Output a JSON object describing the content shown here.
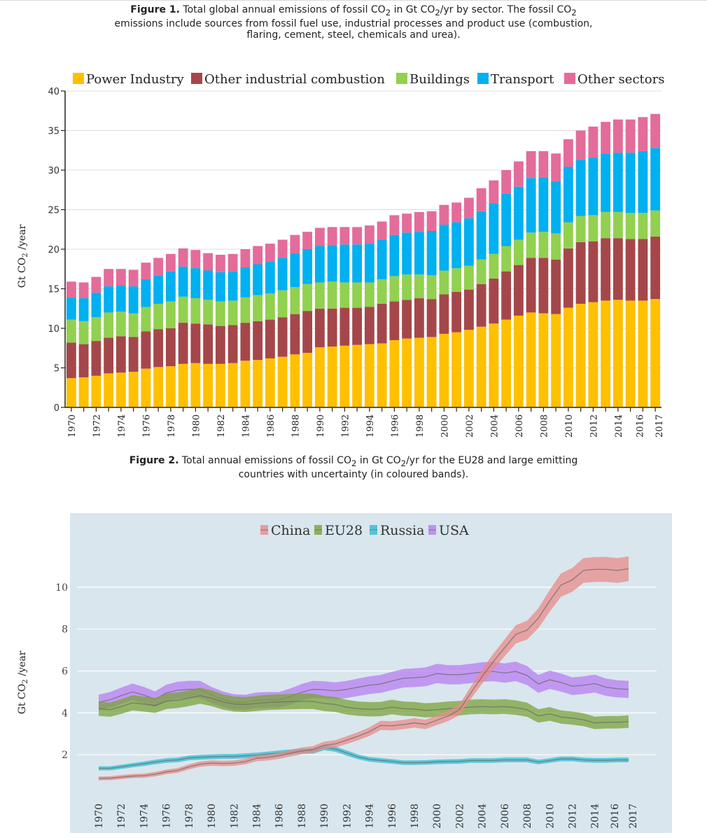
{
  "figure1": {
    "caption_label": "Figure 1.",
    "caption_text_1": " Total global annual emissions of fossil CO",
    "caption_sub_1": "2",
    "caption_text_2": " in Gt CO",
    "caption_sub_2": "2",
    "caption_text_3": "/yr by sector. The fossil CO",
    "caption_sub_3": "2",
    "caption_line_2": "emissions include sources from fossil fuel use, industrial processes and product use (combustion,",
    "caption_line_3": "flaring, cement, steel, chemicals and urea)."
  },
  "figure2": {
    "caption_label": "Figure 2.",
    "caption_text_1": " Total annual emissions of fossil CO",
    "caption_sub_1": "2",
    "caption_text_2": " in Gt CO",
    "caption_sub_2": "2",
    "caption_text_3": "/yr for the EU28 and large emitting",
    "caption_line_2": "countries with uncertainty (in coloured bands)."
  },
  "colors": {
    "power": "#ffc000",
    "other_industrial": "#a5474a",
    "buildings": "#92d050",
    "transport": "#00b0f0",
    "other_sectors": "#e36c9a",
    "china": "#e88b88",
    "eu28": "#79a33a",
    "russia": "#31bcd2",
    "usa": "#b77ef0",
    "panel_bg": "#d9e6ed"
  },
  "chart_data": [
    {
      "type": "bar",
      "stacked": true,
      "ylabel": "Gt CO2 /year",
      "ylim": [
        0,
        40
      ],
      "yticks": [
        0,
        5,
        10,
        15,
        20,
        25,
        30,
        35,
        40
      ],
      "grid": true,
      "legend_position": "top",
      "categories": [
        1970,
        1971,
        1972,
        1973,
        1974,
        1975,
        1976,
        1977,
        1978,
        1979,
        1980,
        1981,
        1982,
        1983,
        1984,
        1985,
        1986,
        1987,
        1988,
        1989,
        1990,
        1991,
        1992,
        1993,
        1994,
        1995,
        1996,
        1997,
        1998,
        1999,
        2000,
        2001,
        2002,
        2003,
        2004,
        2005,
        2006,
        2007,
        2008,
        2009,
        2010,
        2011,
        2012,
        2013,
        2014,
        2015,
        2016,
        2017
      ],
      "tick_labels": [
        "1970",
        "1972",
        "1974",
        "1976",
        "1978",
        "1980",
        "1982",
        "1984",
        "1986",
        "1988",
        "1990",
        "1992",
        "1994",
        "1996",
        "1998",
        "2000",
        "2002",
        "2004",
        "2006",
        "2008",
        "2010",
        "2012",
        "2014",
        "2016",
        "2017"
      ],
      "series": [
        {
          "name": "Power Industry",
          "color_key": "power",
          "values": [
            3.7,
            3.8,
            4.0,
            4.3,
            4.4,
            4.5,
            4.9,
            5.1,
            5.2,
            5.5,
            5.6,
            5.5,
            5.5,
            5.6,
            5.9,
            6.0,
            6.2,
            6.4,
            6.7,
            6.9,
            7.6,
            7.7,
            7.8,
            7.9,
            8.0,
            8.1,
            8.5,
            8.7,
            8.8,
            8.9,
            9.3,
            9.5,
            9.8,
            10.2,
            10.6,
            11.1,
            11.6,
            12.0,
            11.9,
            11.8,
            12.6,
            13.1,
            13.3,
            13.5,
            13.6,
            13.5,
            13.5,
            13.7
          ]
        },
        {
          "name": "Other industrial combustion",
          "color_key": "other_industrial",
          "values": [
            4.5,
            4.2,
            4.4,
            4.5,
            4.6,
            4.4,
            4.7,
            4.8,
            4.8,
            5.2,
            5.0,
            5.0,
            4.8,
            4.8,
            4.8,
            4.9,
            4.9,
            5.0,
            5.1,
            5.3,
            4.9,
            4.8,
            4.8,
            4.7,
            4.7,
            5.0,
            4.9,
            4.9,
            5.0,
            4.8,
            5.0,
            5.1,
            5.1,
            5.4,
            5.7,
            6.1,
            6.4,
            6.9,
            7.0,
            6.9,
            7.5,
            7.8,
            7.7,
            7.9,
            7.8,
            7.8,
            7.8,
            7.9
          ]
        },
        {
          "name": "Buildings",
          "color_key": "buildings",
          "values": [
            2.9,
            2.9,
            3.0,
            3.2,
            3.1,
            3.0,
            3.1,
            3.2,
            3.4,
            3.3,
            3.2,
            3.1,
            3.1,
            3.1,
            3.2,
            3.3,
            3.3,
            3.4,
            3.4,
            3.4,
            3.3,
            3.4,
            3.2,
            3.2,
            3.1,
            3.1,
            3.2,
            3.2,
            3.0,
            3.0,
            3.0,
            3.0,
            3.0,
            3.1,
            3.1,
            3.2,
            3.2,
            3.2,
            3.3,
            3.3,
            3.3,
            3.3,
            3.3,
            3.3,
            3.3,
            3.3,
            3.3,
            3.3
          ]
        },
        {
          "name": "Transport",
          "color_key": "transport",
          "values": [
            2.8,
            2.9,
            3.1,
            3.3,
            3.3,
            3.4,
            3.5,
            3.6,
            3.8,
            3.8,
            3.8,
            3.7,
            3.7,
            3.7,
            3.8,
            3.9,
            4.0,
            4.1,
            4.3,
            4.4,
            4.6,
            4.6,
            4.8,
            4.8,
            4.9,
            5.0,
            5.2,
            5.3,
            5.4,
            5.6,
            5.8,
            5.8,
            6.0,
            6.1,
            6.4,
            6.6,
            6.7,
            6.9,
            6.9,
            6.6,
            7.0,
            7.1,
            7.3,
            7.4,
            7.5,
            7.6,
            7.8,
            7.9
          ]
        },
        {
          "name": "Other sectors",
          "color_key": "other_sectors",
          "values": [
            2.0,
            2.0,
            2.0,
            2.2,
            2.1,
            2.1,
            2.1,
            2.2,
            2.2,
            2.3,
            2.3,
            2.2,
            2.2,
            2.2,
            2.3,
            2.3,
            2.3,
            2.3,
            2.3,
            2.2,
            2.3,
            2.3,
            2.2,
            2.2,
            2.3,
            2.3,
            2.5,
            2.4,
            2.5,
            2.5,
            2.5,
            2.5,
            2.6,
            2.9,
            2.9,
            3.0,
            3.2,
            3.4,
            3.3,
            3.5,
            3.5,
            3.7,
            3.9,
            4.0,
            4.2,
            4.2,
            4.3,
            4.3
          ]
        }
      ]
    },
    {
      "type": "line",
      "ylabel": "Gt CO2 /year",
      "ylim": [
        0,
        11.7
      ],
      "yticks": [
        2,
        4,
        6,
        8,
        10
      ],
      "grid": true,
      "legend_position": "top",
      "x": [
        1970,
        1971,
        1972,
        1973,
        1974,
        1975,
        1976,
        1977,
        1978,
        1979,
        1980,
        1981,
        1982,
        1983,
        1984,
        1985,
        1986,
        1987,
        1988,
        1989,
        1990,
        1991,
        1992,
        1993,
        1994,
        1995,
        1996,
        1997,
        1998,
        1999,
        2000,
        2001,
        2002,
        2003,
        2004,
        2005,
        2006,
        2007,
        2008,
        2009,
        2010,
        2011,
        2012,
        2013,
        2014,
        2015,
        2016,
        2017
      ],
      "tick_labels": [
        "1970",
        "1972",
        "1974",
        "1976",
        "1978",
        "1980",
        "1982",
        "1984",
        "1986",
        "1988",
        "1990",
        "1992",
        "1994",
        "1996",
        "1998",
        "2000",
        "2002",
        "2004",
        "2006",
        "2008",
        "2010",
        "2012",
        "2014",
        "2016",
        "2017"
      ],
      "series": [
        {
          "name": "China",
          "color_key": "china",
          "band": 0.1,
          "values": [
            0.87,
            0.88,
            0.93,
            0.98,
            1.0,
            1.07,
            1.18,
            1.25,
            1.42,
            1.55,
            1.6,
            1.58,
            1.6,
            1.67,
            1.83,
            1.87,
            1.95,
            2.07,
            2.18,
            2.25,
            2.45,
            2.52,
            2.7,
            2.88,
            3.1,
            3.4,
            3.38,
            3.44,
            3.52,
            3.45,
            3.65,
            3.85,
            4.15,
            4.95,
            5.73,
            6.45,
            7.1,
            7.75,
            7.95,
            8.52,
            9.35,
            10.1,
            10.35,
            10.8,
            10.85,
            10.85,
            10.8,
            10.88
          ]
        },
        {
          "name": "EU28",
          "color_key": "eu28",
          "band": 0.14,
          "values": [
            4.2,
            4.15,
            4.3,
            4.48,
            4.42,
            4.35,
            4.55,
            4.6,
            4.7,
            4.82,
            4.7,
            4.52,
            4.42,
            4.4,
            4.45,
            4.5,
            4.52,
            4.54,
            4.55,
            4.55,
            4.45,
            4.4,
            4.27,
            4.2,
            4.17,
            4.18,
            4.28,
            4.2,
            4.18,
            4.12,
            4.15,
            4.2,
            4.22,
            4.28,
            4.3,
            4.28,
            4.3,
            4.25,
            4.15,
            3.85,
            3.95,
            3.8,
            3.75,
            3.67,
            3.52,
            3.55,
            3.55,
            3.58
          ]
        },
        {
          "name": "Russia",
          "color_key": "russia",
          "band": 0.07,
          "values": [
            1.35,
            1.35,
            1.42,
            1.5,
            1.57,
            1.65,
            1.72,
            1.75,
            1.85,
            1.88,
            1.9,
            1.92,
            1.92,
            1.95,
            1.98,
            2.03,
            2.08,
            2.13,
            2.18,
            2.18,
            2.35,
            2.27,
            2.08,
            1.9,
            1.78,
            1.73,
            1.68,
            1.62,
            1.62,
            1.63,
            1.66,
            1.67,
            1.68,
            1.72,
            1.72,
            1.72,
            1.75,
            1.75,
            1.75,
            1.65,
            1.72,
            1.8,
            1.8,
            1.75,
            1.73,
            1.73,
            1.75,
            1.75
          ]
        },
        {
          "name": "USA",
          "color_key": "usa",
          "band": 0.14,
          "values": [
            4.5,
            4.62,
            4.82,
            5.0,
            4.85,
            4.65,
            4.95,
            5.08,
            5.12,
            5.12,
            4.85,
            4.65,
            4.52,
            4.5,
            4.6,
            4.62,
            4.62,
            4.78,
            4.98,
            5.12,
            5.1,
            5.05,
            5.12,
            5.22,
            5.32,
            5.38,
            5.52,
            5.65,
            5.68,
            5.72,
            5.88,
            5.82,
            5.82,
            5.88,
            5.95,
            5.98,
            5.9,
            5.98,
            5.78,
            5.38,
            5.58,
            5.45,
            5.27,
            5.32,
            5.4,
            5.22,
            5.15,
            5.12
          ]
        }
      ]
    }
  ]
}
